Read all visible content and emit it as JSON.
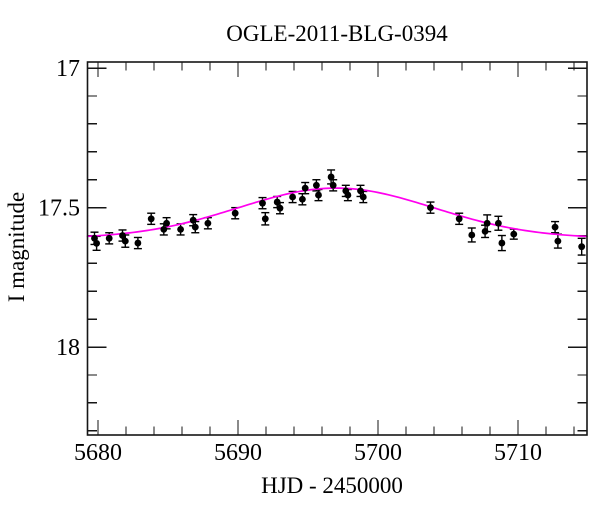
{
  "figure": {
    "title": "OGLE-2011-BLG-0394",
    "xlabel": "HJD - 2450000",
    "ylabel": "I magnitude"
  },
  "chart_data": {
    "type": "scatter",
    "title": "OGLE-2011-BLG-0394",
    "xlabel": "HJD - 2450000",
    "ylabel": "I magnitude",
    "grid": false,
    "legend": "none",
    "colors": {
      "points": "#000000",
      "model_curve": "#ff00ee",
      "axes": "#161616",
      "background": "#ffffff"
    },
    "x_axis": {
      "min": 5679.25,
      "max": 5714.93,
      "major_ticks": [
        5680,
        5690,
        5700,
        5710
      ],
      "major_tick_labels": [
        "5680",
        "5690",
        "5700",
        "5710"
      ],
      "minor_tick_step": 2
    },
    "y_axis": {
      "min": 16.978,
      "max": 18.315,
      "inverted_magnitude_axis": true,
      "major_ticks": [
        17,
        17.5,
        18
      ],
      "major_tick_labels": [
        "17",
        "17.5",
        "18"
      ],
      "minor_tick_step": 0.1
    },
    "points_format": [
      "hjd_minus_2450000",
      "i_magnitude",
      "error"
    ],
    "points": [
      [
        5679.75,
        17.61,
        0.022
      ],
      [
        5679.9,
        17.628,
        0.025
      ],
      [
        5680.8,
        17.61,
        0.02
      ],
      [
        5681.75,
        17.6,
        0.02
      ],
      [
        5681.95,
        17.62,
        0.022
      ],
      [
        5682.85,
        17.627,
        0.02
      ],
      [
        5683.8,
        17.54,
        0.02
      ],
      [
        5684.7,
        17.578,
        0.02
      ],
      [
        5684.9,
        17.556,
        0.02
      ],
      [
        5685.9,
        17.578,
        0.02
      ],
      [
        5686.8,
        17.545,
        0.02
      ],
      [
        5686.95,
        17.57,
        0.02
      ],
      [
        5687.85,
        17.556,
        0.02
      ],
      [
        5689.8,
        17.52,
        0.02
      ],
      [
        5691.75,
        17.484,
        0.02
      ],
      [
        5691.95,
        17.54,
        0.022
      ],
      [
        5692.8,
        17.48,
        0.02
      ],
      [
        5693.0,
        17.502,
        0.02
      ],
      [
        5693.9,
        17.462,
        0.02
      ],
      [
        5694.6,
        17.47,
        0.02
      ],
      [
        5694.8,
        17.43,
        0.02
      ],
      [
        5695.6,
        17.42,
        0.02
      ],
      [
        5695.75,
        17.455,
        0.02
      ],
      [
        5696.65,
        17.39,
        0.025
      ],
      [
        5696.8,
        17.42,
        0.02
      ],
      [
        5697.7,
        17.44,
        0.02
      ],
      [
        5697.85,
        17.455,
        0.02
      ],
      [
        5698.75,
        17.44,
        0.02
      ],
      [
        5698.95,
        17.462,
        0.02
      ],
      [
        5703.75,
        17.5,
        0.02
      ],
      [
        5705.8,
        17.54,
        0.02
      ],
      [
        5706.7,
        17.598,
        0.025
      ],
      [
        5707.65,
        17.585,
        0.022
      ],
      [
        5707.8,
        17.556,
        0.03
      ],
      [
        5708.6,
        17.556,
        0.025
      ],
      [
        5708.85,
        17.627,
        0.027
      ],
      [
        5709.7,
        17.595,
        0.018
      ],
      [
        5712.65,
        17.57,
        0.02
      ],
      [
        5712.85,
        17.62,
        0.025
      ],
      [
        5714.55,
        17.64,
        0.03
      ]
    ],
    "model_curve": {
      "description": "smooth magenta microlensing model light curve",
      "baseline_mag": 17.61,
      "peak_mag": 17.43,
      "amplitude_mag": 0.18,
      "peak_t": 5697.0,
      "gaussian_sigma2": 98,
      "samples": [
        [
          5679.25,
          17.601
        ],
        [
          5680,
          17.6
        ],
        [
          5682,
          17.592
        ],
        [
          5684,
          17.578
        ],
        [
          5686,
          17.558
        ],
        [
          5688,
          17.531
        ],
        [
          5690,
          17.501
        ],
        [
          5692,
          17.471
        ],
        [
          5694,
          17.446
        ],
        [
          5696,
          17.432
        ],
        [
          5697,
          17.43
        ],
        [
          5698,
          17.432
        ],
        [
          5700,
          17.446
        ],
        [
          5702,
          17.471
        ],
        [
          5704,
          17.501
        ],
        [
          5706,
          17.531
        ],
        [
          5708,
          17.558
        ],
        [
          5710,
          17.578
        ],
        [
          5712,
          17.592
        ],
        [
          5714,
          17.6
        ],
        [
          5714.93,
          17.601
        ]
      ]
    }
  }
}
